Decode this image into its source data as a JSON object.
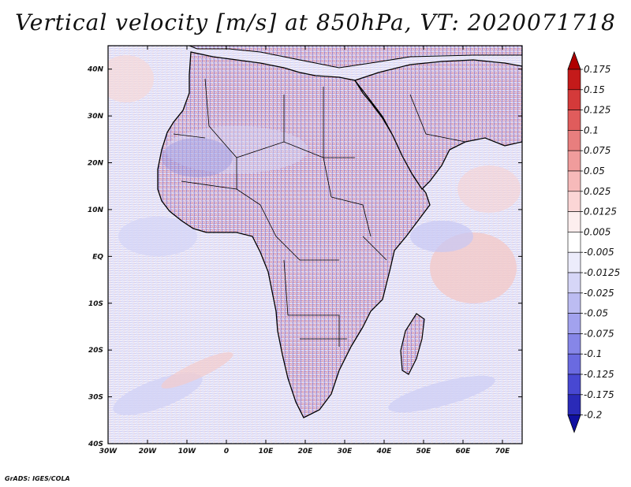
{
  "title": "Vertical velocity [m/s] at 850hPa, VT: 2020071718",
  "footer": "GrADS: IGES/COLA",
  "map": {
    "lat_labels": [
      "40N",
      "30N",
      "20N",
      "10N",
      "EQ",
      "10S",
      "20S",
      "30S",
      "40S"
    ],
    "lon_labels": [
      "30W",
      "20W",
      "10W",
      "0",
      "10E",
      "20E",
      "30E",
      "40E",
      "50E",
      "60E",
      "70E"
    ],
    "lat_range": [
      -40,
      45
    ],
    "lon_range": [
      -30,
      75
    ]
  },
  "colorbar": {
    "levels": [
      "0.175",
      "0.15",
      "0.125",
      "0.1",
      "0.075",
      "0.05",
      "0.025",
      "0.0125",
      "0.005",
      "-0.005",
      "-0.0125",
      "-0.025",
      "-0.05",
      "-0.075",
      "-0.1",
      "-0.125",
      "-0.175",
      "-0.2"
    ],
    "colors": [
      "#b00000",
      "#c41a1a",
      "#d43a3a",
      "#e05c5c",
      "#e87e7e",
      "#f09c9c",
      "#f6baba",
      "#fbd6d6",
      "#fdeeee",
      "#ffffff",
      "#ececfb",
      "#d6d6f7",
      "#bcbcf2",
      "#a2a2ee",
      "#8686e8",
      "#6a6ae0",
      "#4848d2",
      "#2a2ab8",
      "#1010a0"
    ]
  },
  "palette": {
    "ocean_bg": "#f3f1fb",
    "coast": "#000000"
  }
}
